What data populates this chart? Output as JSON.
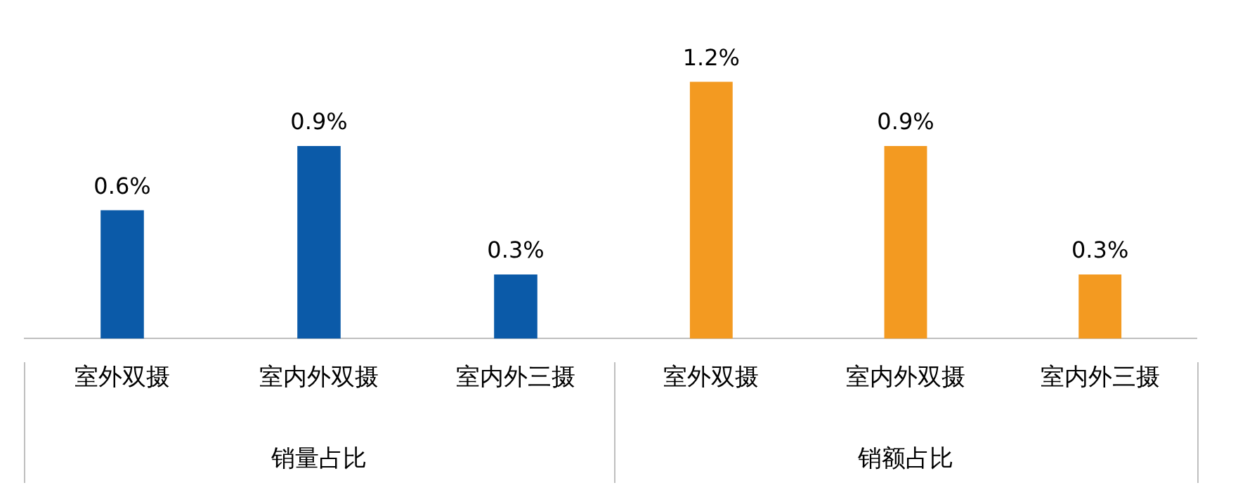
{
  "chart_data": [
    {
      "type": "bar",
      "categories": [
        "室外双摄",
        "室内外双摄",
        "室内外三摄"
      ],
      "values": [
        0.6,
        0.9,
        0.3
      ],
      "color": "#0b5aa8",
      "value_labels": [
        "0.6%",
        "0.9%",
        "0.3%"
      ],
      "xlabel": "销量占比",
      "tick_labels": "x",
      "grid": false,
      "legend": false
    },
    {
      "type": "bar",
      "categories": [
        "室外双摄",
        "室内外双摄",
        "室内外三摄"
      ],
      "values": [
        1.2,
        0.9,
        0.3
      ],
      "color": "#f39a21",
      "value_labels": [
        "1.2%",
        "0.9%",
        "0.3%"
      ],
      "xlabel": "销额占比",
      "tick_labels": "x",
      "grid": false,
      "legend": false
    }
  ]
}
